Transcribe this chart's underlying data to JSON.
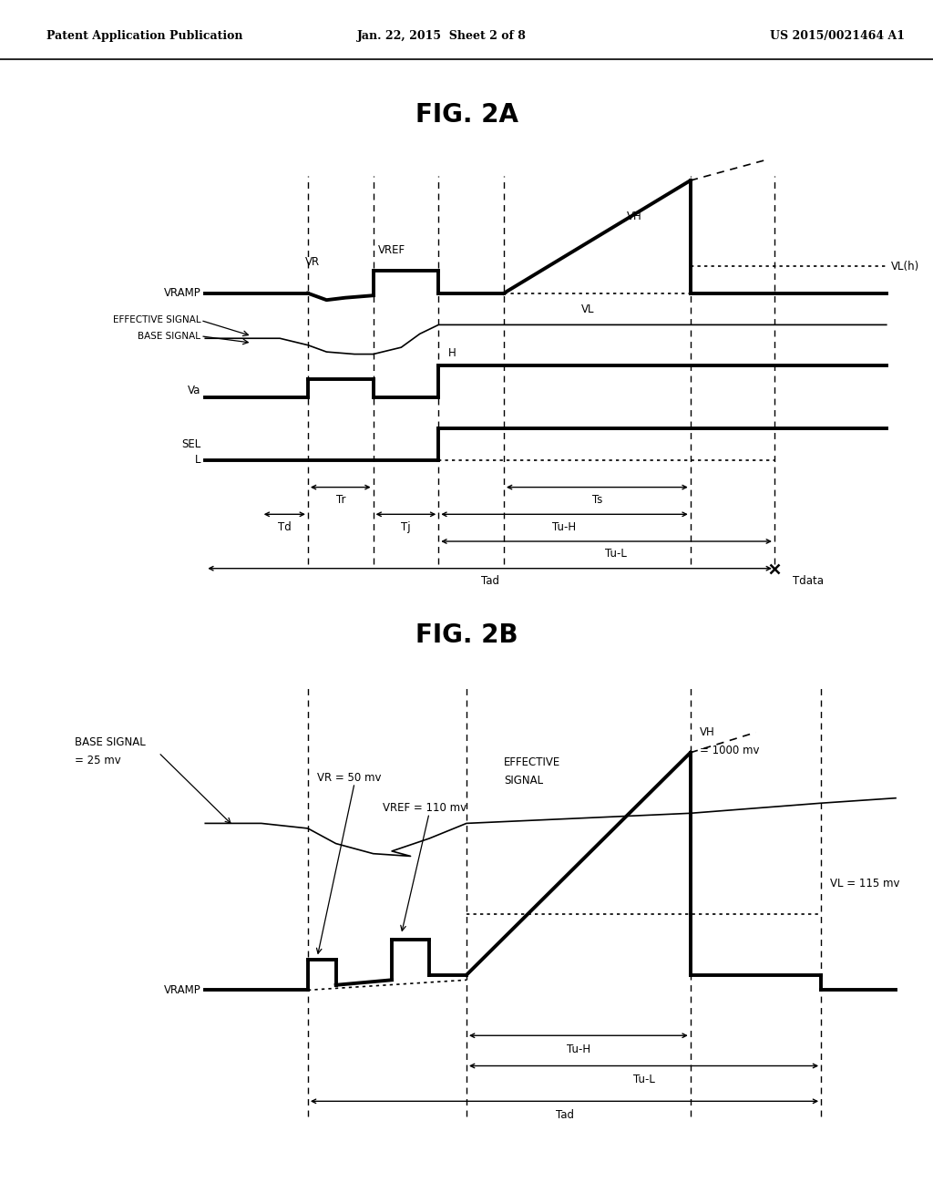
{
  "header_left": "Patent Application Publication",
  "header_mid": "Jan. 22, 2015  Sheet 2 of 8",
  "header_right": "US 2015/0021464 A1",
  "fig2a_title": "FIG. 2A",
  "fig2b_title": "FIG. 2B",
  "bg_color": "#ffffff",
  "line_color": "#000000"
}
